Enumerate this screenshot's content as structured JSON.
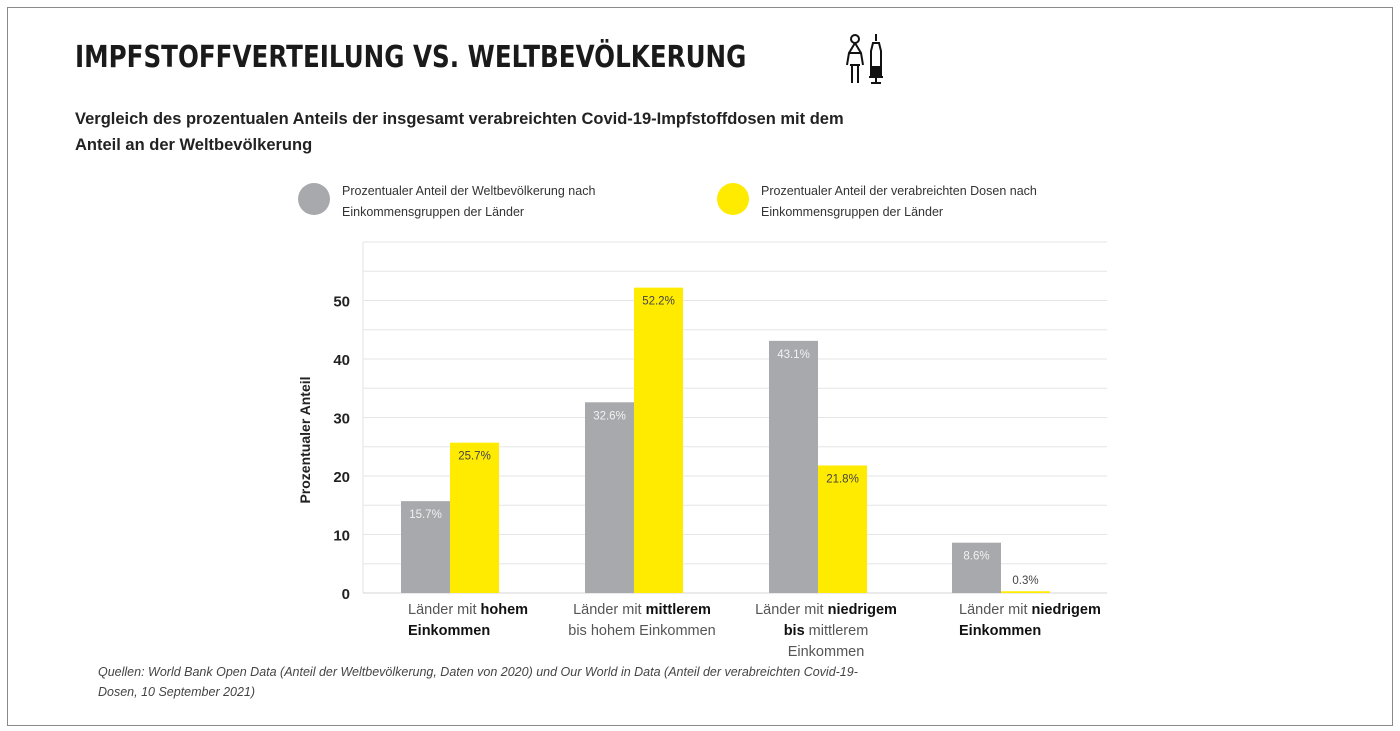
{
  "header": {
    "title": "IMPFSTOFFVERTEILUNG VS. WELTBEVÖLKERUNG",
    "subtitle": "Vergleich des prozentualen Anteils der insgesamt verabreichten Covid-19-Impfstoffdosen mit dem Anteil an der Weltbevölkerung",
    "icon": "person-and-syringe-icon"
  },
  "footer": {
    "source": "Quellen: World Bank Open Data (Anteil der Weltbevölkerung, Daten von 2020) und Our World in Data (Anteil der verabreichten Covid-19-Dosen, 10 September 2021)"
  },
  "chart_data": {
    "type": "bar",
    "ylabel": "Prozentualer Anteil",
    "xlabel": "",
    "ylim": [
      0,
      60
    ],
    "yticks": [
      0,
      10,
      20,
      30,
      40,
      50
    ],
    "grid": true,
    "legend_position": "top",
    "categories": [
      {
        "normal": "Länder mit ",
        "bold": "hohem Einkommen",
        "rest": ""
      },
      {
        "normal": "Länder mit ",
        "bold": "mittlerem",
        "rest": " bis hohem Einkommen"
      },
      {
        "normal": "Länder mit ",
        "bold": "niedrigem bis",
        "rest": " mittlerem Einkommen"
      },
      {
        "normal": "Länder mit ",
        "bold": "niedrigem Einkommen",
        "rest": ""
      }
    ],
    "series": [
      {
        "name": "Prozentualer Anteil der Weltbevölkerung nach Einkommensgruppen der Länder",
        "color": "#a7a9ac",
        "values": [
          15.7,
          32.6,
          43.1,
          8.6
        ],
        "labels": [
          "15.7%",
          "32.6%",
          "43.1%",
          "8.6%"
        ]
      },
      {
        "name": "Prozentualer Anteil der verabreichten Dosen nach Einkommensgruppen der Länder",
        "color": "#ffeb00",
        "values": [
          25.7,
          52.2,
          21.8,
          0.3
        ],
        "labels": [
          "25.7%",
          "52.2%",
          "21.8%",
          "0.3%"
        ]
      }
    ]
  }
}
